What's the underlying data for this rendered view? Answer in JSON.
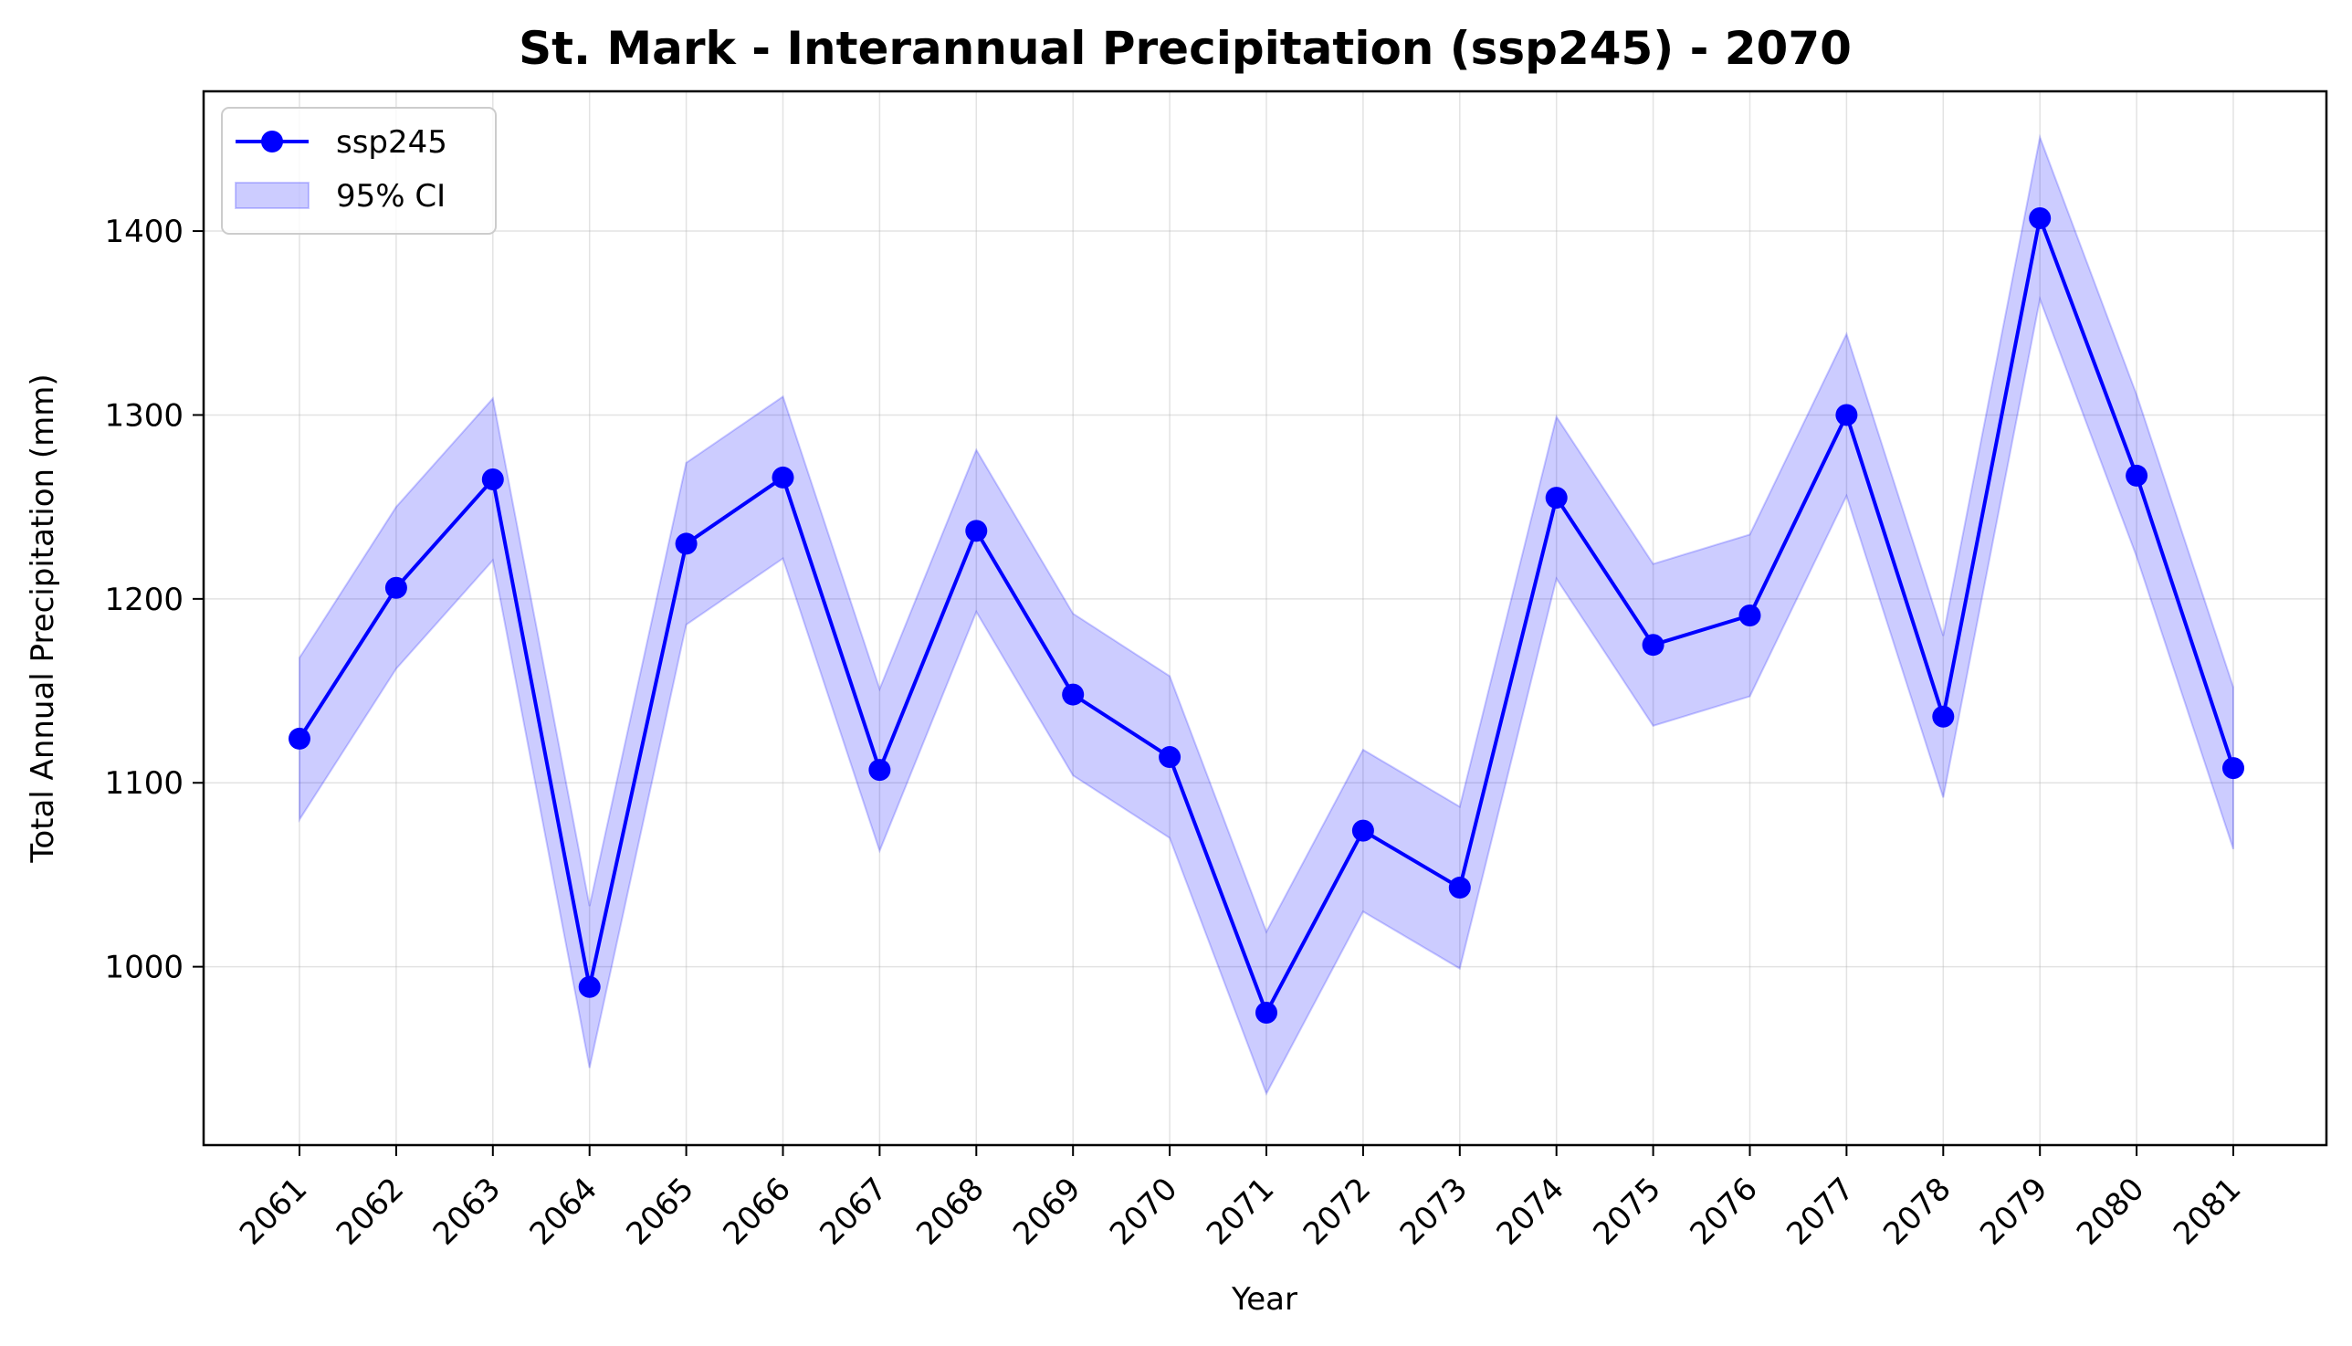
{
  "chart_data": {
    "type": "line",
    "title": "St. Mark - Interannual Precipitation (ssp245) - 2070",
    "xlabel": "Year",
    "ylabel": "Total Annual Precipitation (mm)",
    "categories": [
      "2061",
      "2062",
      "2063",
      "2064",
      "2065",
      "2066",
      "2067",
      "2068",
      "2069",
      "2070",
      "2071",
      "2072",
      "2073",
      "2074",
      "2075",
      "2076",
      "2077",
      "2078",
      "2079",
      "2080",
      "2081"
    ],
    "series": [
      {
        "name": "ssp245",
        "color": "#0000ff",
        "values": [
          1124,
          1206,
          1265,
          989,
          1230,
          1266,
          1107,
          1237,
          1148,
          1114,
          975,
          1074,
          1043,
          1255,
          1175,
          1191,
          1300,
          1136,
          1407,
          1267,
          1108
        ]
      }
    ],
    "ci": {
      "name": "95% CI",
      "color": "#0000ff",
      "lower": [
        1080,
        1162,
        1221,
        945,
        1186,
        1222,
        1063,
        1193,
        1104,
        1070,
        931,
        1030,
        999,
        1211,
        1131,
        1147,
        1256,
        1092,
        1363,
        1223,
        1064
      ],
      "upper": [
        1168,
        1250,
        1309,
        1033,
        1274,
        1310,
        1151,
        1281,
        1192,
        1158,
        1019,
        1118,
        1087,
        1299,
        1219,
        1235,
        1344,
        1180,
        1451,
        1311,
        1152
      ]
    },
    "ylim": [
      903,
      1476
    ],
    "yticks": [
      1000,
      1100,
      1200,
      1300,
      1400
    ],
    "grid": true,
    "legend_position": "top-left",
    "x_tick_rotation": 45
  }
}
